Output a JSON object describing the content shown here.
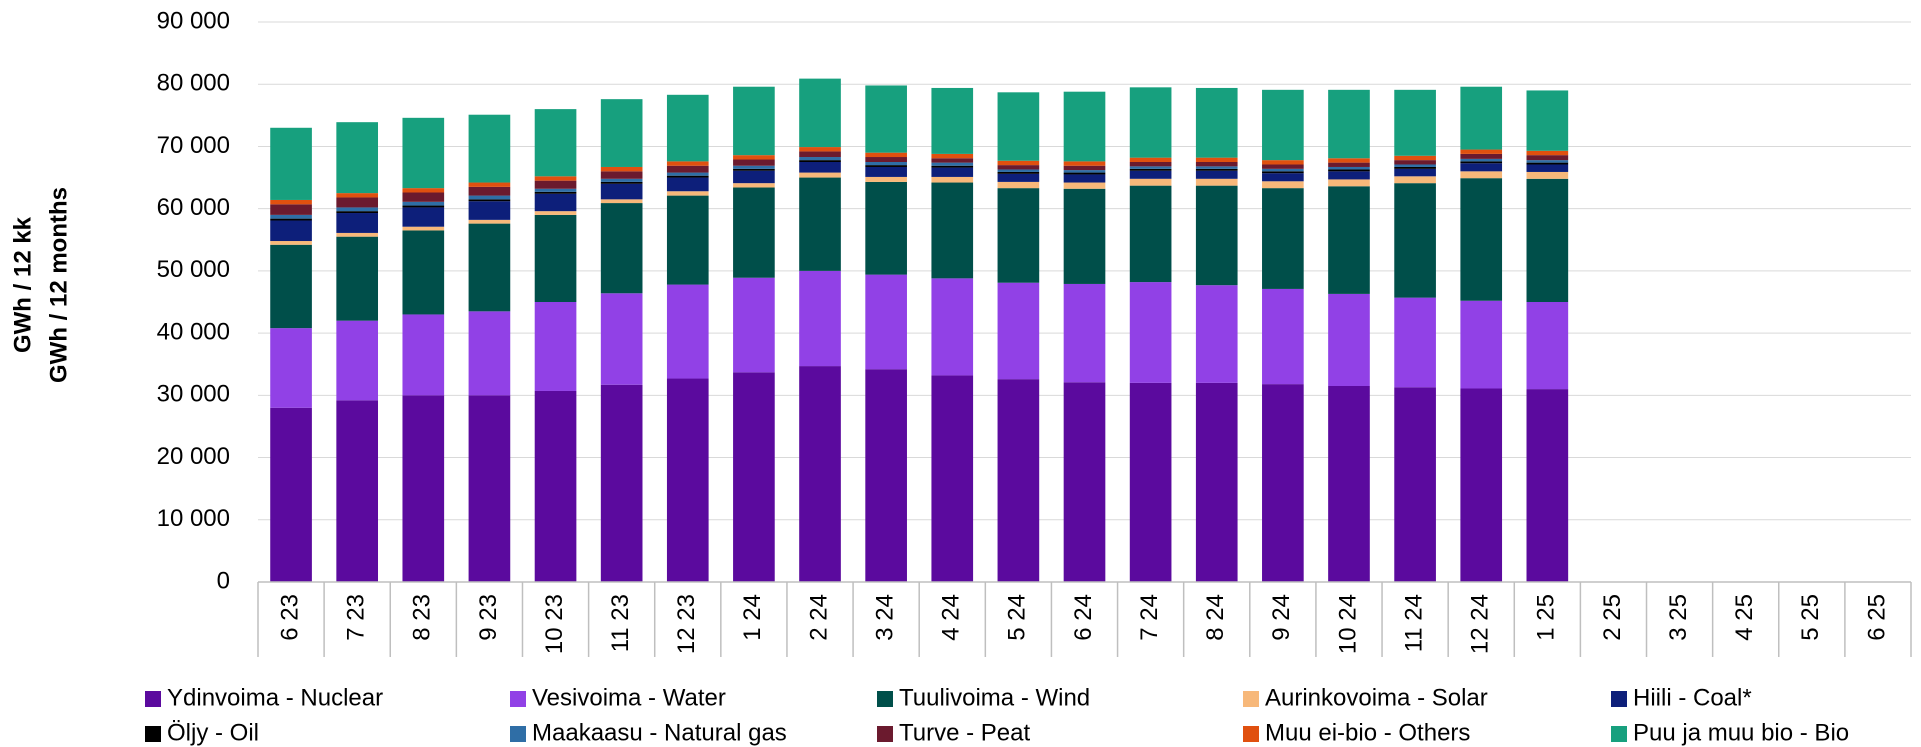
{
  "chart_data": {
    "type": "stacked_bar",
    "ylabel": [
      "GWh / 12 kk",
      "GWh / 12 months"
    ],
    "categories": [
      "6 23",
      "7 23",
      "8 23",
      "9 23",
      "10 23",
      "11 23",
      "12 23",
      "1 24",
      "2 24",
      "3 24",
      "4 24",
      "5 24",
      "6 24",
      "7 24",
      "8 24",
      "9 24",
      "10 24",
      "11 24",
      "12 24",
      "1 25",
      "2 25",
      "3 25",
      "4 25",
      "5 25",
      "6 25"
    ],
    "series": [
      {
        "name": "Ydinvoima - Nuclear",
        "color": "#5b0a9e",
        "values": [
          28000,
          29200,
          30000,
          30000,
          30700,
          31700,
          32700,
          33700,
          34700,
          34200,
          33200,
          32600,
          32100,
          32000,
          32000,
          31800,
          31500,
          31300,
          31100,
          31000,
          null,
          null,
          null,
          null,
          null
        ]
      },
      {
        "name": "Vesivoima - Water",
        "color": "#9141e6",
        "values": [
          12800,
          12800,
          13000,
          13500,
          14300,
          14700,
          15100,
          15200,
          15300,
          15200,
          15600,
          15500,
          15800,
          16200,
          15700,
          15300,
          14800,
          14400,
          14100,
          14000,
          null,
          null,
          null,
          null,
          null
        ]
      },
      {
        "name": "Tuulivoima - Wind",
        "color": "#004f4a",
        "values": [
          13400,
          13500,
          13500,
          14100,
          14000,
          14500,
          14300,
          14500,
          15000,
          14900,
          15400,
          15200,
          15300,
          15500,
          16000,
          16200,
          17300,
          18400,
          19700,
          19800,
          null,
          null,
          null,
          null,
          null
        ]
      },
      {
        "name": "Aurinkovoima - Solar",
        "color": "#f7b87a",
        "values": [
          600,
          600,
          600,
          600,
          600,
          600,
          700,
          700,
          800,
          800,
          900,
          1000,
          1000,
          1100,
          1100,
          1100,
          1100,
          1100,
          1100,
          1100,
          null,
          null,
          null,
          null,
          null
        ]
      },
      {
        "name": "Hiili - Coal*",
        "color": "#0d1f7a",
        "values": [
          3300,
          3200,
          3100,
          3000,
          2800,
          2500,
          2200,
          2000,
          1700,
          1600,
          1500,
          1300,
          1300,
          1300,
          1300,
          1300,
          1300,
          1200,
          1300,
          1200,
          null,
          null,
          null,
          null,
          null
        ]
      },
      {
        "name": "Öljy - Oil",
        "color": "#000000",
        "values": [
          300,
          300,
          300,
          300,
          300,
          300,
          300,
          300,
          300,
          300,
          300,
          300,
          300,
          300,
          300,
          300,
          300,
          300,
          300,
          300,
          null,
          null,
          null,
          null,
          null
        ]
      },
      {
        "name": "Maakaasu - Natural gas",
        "color": "#2f6ea6",
        "values": [
          600,
          600,
          600,
          600,
          500,
          500,
          500,
          500,
          500,
          500,
          500,
          400,
          400,
          400,
          400,
          400,
          400,
          400,
          400,
          400,
          null,
          null,
          null,
          null,
          null
        ]
      },
      {
        "name": "Turve - Peat",
        "color": "#6b1a2e",
        "values": [
          1700,
          1600,
          1500,
          1400,
          1300,
          1200,
          1100,
          1000,
          900,
          800,
          700,
          700,
          700,
          700,
          700,
          700,
          700,
          700,
          800,
          800,
          null,
          null,
          null,
          null,
          null
        ]
      },
      {
        "name": "Muu ei-bio - Others",
        "color": "#e0500f",
        "values": [
          700,
          700,
          700,
          700,
          700,
          700,
          700,
          700,
          700,
          700,
          700,
          700,
          700,
          700,
          700,
          700,
          700,
          700,
          700,
          700,
          null,
          null,
          null,
          null,
          null
        ]
      },
      {
        "name": "Puu ja muu bio - Bio",
        "color": "#17a07e",
        "values": [
          11600,
          11400,
          11300,
          10900,
          10800,
          10900,
          10700,
          11000,
          11000,
          10800,
          10600,
          11000,
          11200,
          11300,
          11200,
          11300,
          11000,
          10600,
          10100,
          9700,
          null,
          null,
          null,
          null,
          null
        ]
      }
    ],
    "ylim": [
      0,
      90000
    ],
    "yticks": [
      0,
      {
        "value": 10000,
        "label": "10 000"
      },
      {
        "value": 20000,
        "label": "20 000"
      },
      {
        "value": 30000,
        "label": "30 000"
      },
      {
        "value": 40000,
        "label": "40 000"
      },
      {
        "value": 50000,
        "label": "50 000"
      },
      {
        "value": 60000,
        "label": "60 000"
      },
      {
        "value": 70000,
        "label": "70 000"
      },
      {
        "value": 80000,
        "label": "80 000"
      },
      {
        "value": 90000,
        "label": "90 000"
      }
    ],
    "grid": true,
    "legend": "bottom"
  }
}
